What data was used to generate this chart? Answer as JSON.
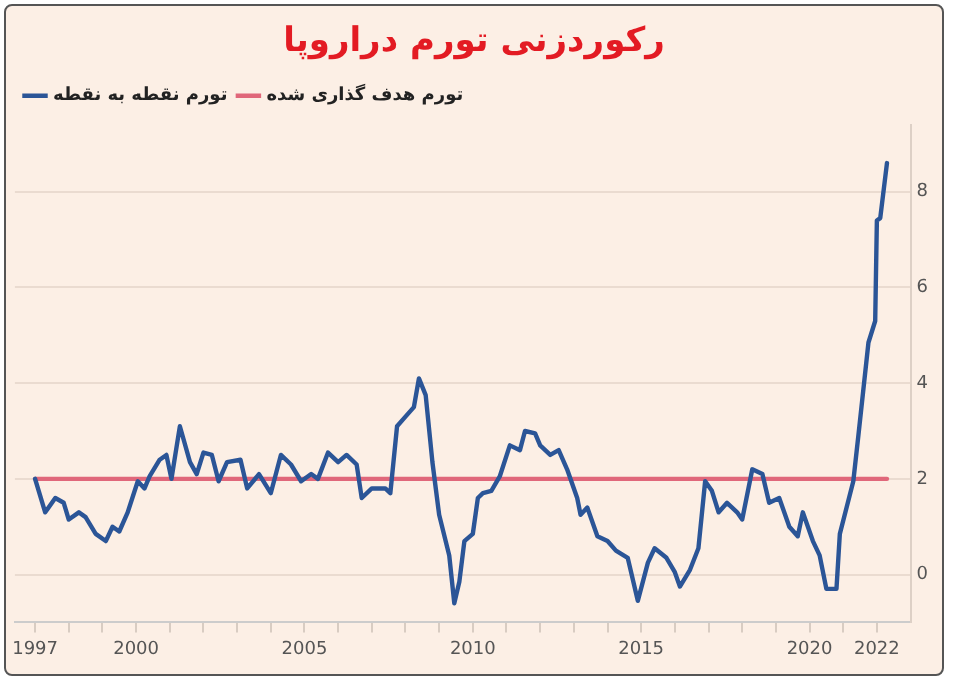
{
  "chart_data": {
    "type": "line",
    "title": "رکوردزنی تورم دراروپا",
    "xlim": [
      1996.4,
      2023
    ],
    "xticks": [
      1997,
      {
        "value": 1998,
        "label": null
      },
      {
        "value": 1999,
        "label": null
      },
      2000,
      {
        "value": 2001,
        "label": null
      },
      {
        "value": 2002,
        "label": null
      },
      {
        "value": 2003,
        "label": null
      },
      {
        "value": 2004,
        "label": null
      },
      2005,
      {
        "value": 2006,
        "label": null
      },
      {
        "value": 2007,
        "label": null
      },
      {
        "value": 2008,
        "label": null
      },
      {
        "value": 2009,
        "label": null
      },
      2010,
      {
        "value": 2011,
        "label": null
      },
      {
        "value": 2012,
        "label": null
      },
      {
        "value": 2013,
        "label": null
      },
      {
        "value": 2014,
        "label": null
      },
      2015,
      {
        "value": 2016,
        "label": null
      },
      {
        "value": 2017,
        "label": null
      },
      {
        "value": 2018,
        "label": null
      },
      {
        "value": 2019,
        "label": null
      },
      2020,
      {
        "value": 2021,
        "label": null
      },
      2022
    ],
    "ylim": [
      -1,
      9.4
    ],
    "yticks": [
      0,
      2,
      4,
      6,
      8
    ],
    "grid": "y",
    "legend": "top left",
    "marker": "none",
    "line_style": "solid",
    "series": [
      {
        "name": "تورم نقطه به نقطه",
        "color": "#2b5597",
        "x": [
          1997.0,
          1997.3,
          1997.6,
          1997.85,
          1998.0,
          1998.3,
          1998.5,
          1998.8,
          1999.1,
          1999.3,
          1999.5,
          1999.75,
          2000.05,
          2000.25,
          2000.4,
          2000.7,
          2000.9,
          2001.05,
          2001.3,
          2001.6,
          2001.8,
          2002.0,
          2002.25,
          2002.45,
          2002.7,
          2003.1,
          2003.3,
          2003.65,
          2004.0,
          2004.3,
          2004.6,
          2004.9,
          2005.2,
          2005.4,
          2005.7,
          2006.0,
          2006.25,
          2006.55,
          2006.7,
          2007.0,
          2007.4,
          2007.55,
          2007.75,
          2008.0,
          2008.25,
          2008.4,
          2008.6,
          2008.8,
          2009.0,
          2009.3,
          2009.45,
          2009.6,
          2009.75,
          2010.0,
          2010.15,
          2010.3,
          2010.55,
          2010.8,
          2011.1,
          2011.4,
          2011.55,
          2011.85,
          2012.0,
          2012.3,
          2012.55,
          2012.8,
          2013.1,
          2013.2,
          2013.4,
          2013.7,
          2014.0,
          2014.25,
          2014.6,
          2014.9,
          2015.2,
          2015.4,
          2015.75,
          2016.0,
          2016.15,
          2016.45,
          2016.7,
          2016.9,
          2017.1,
          2017.3,
          2017.55,
          2017.85,
          2018.0,
          2018.3,
          2018.6,
          2018.8,
          2019.1,
          2019.4,
          2019.65,
          2019.8,
          2020.1,
          2020.3,
          2020.5,
          2020.8,
          2020.9,
          2021.3,
          2021.45,
          2021.75,
          2021.95,
          2022.0,
          2022.1,
          2022.3
        ],
        "values": [
          2.0,
          1.3,
          1.6,
          1.5,
          1.15,
          1.3,
          1.2,
          0.85,
          0.7,
          1.0,
          0.9,
          1.3,
          1.95,
          1.8,
          2.05,
          2.4,
          2.5,
          2.0,
          3.1,
          2.35,
          2.1,
          2.55,
          2.5,
          1.95,
          2.35,
          2.4,
          1.8,
          2.1,
          1.7,
          2.5,
          2.3,
          1.95,
          2.1,
          2.0,
          2.55,
          2.35,
          2.5,
          2.3,
          1.6,
          1.8,
          1.8,
          1.7,
          3.1,
          3.3,
          3.5,
          4.1,
          3.75,
          2.35,
          1.25,
          0.4,
          -0.6,
          -0.15,
          0.7,
          0.85,
          1.6,
          1.7,
          1.75,
          2.05,
          2.7,
          2.6,
          3.0,
          2.95,
          2.7,
          2.5,
          2.6,
          2.2,
          1.6,
          1.25,
          1.4,
          0.8,
          0.7,
          0.5,
          0.35,
          -0.55,
          0.25,
          0.55,
          0.35,
          0.05,
          -0.25,
          0.1,
          0.55,
          1.95,
          1.75,
          1.3,
          1.5,
          1.3,
          1.15,
          2.2,
          2.1,
          1.5,
          1.6,
          1.0,
          0.8,
          1.3,
          0.7,
          0.4,
          -0.3,
          -0.3,
          0.85,
          1.95,
          2.9,
          4.85,
          5.3,
          7.4,
          7.45,
          8.6
        ]
      },
      {
        "name": "تورم هدف گذاری شده",
        "color": "#e0677a",
        "x": [
          1997.0,
          2022.3
        ],
        "values": [
          2,
          2
        ]
      }
    ]
  }
}
